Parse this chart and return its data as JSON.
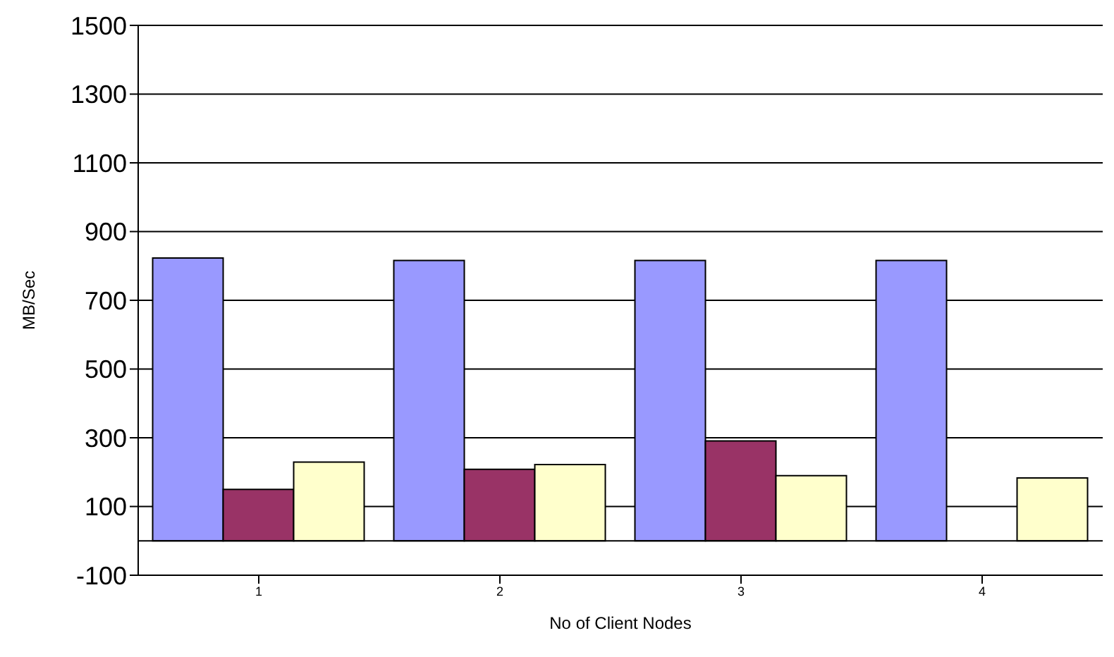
{
  "chart_data": {
    "type": "bar",
    "xlabel": "No of Client Nodes",
    "ylabel": "MB/Sec",
    "categories": [
      "1",
      "2",
      "3",
      "4"
    ],
    "series": [
      {
        "color": "#9999ff",
        "values": [
          823,
          816,
          816,
          816
        ]
      },
      {
        "color": "#993366",
        "values": [
          150,
          208,
          291,
          null
        ]
      },
      {
        "color": "#ffffcc",
        "values": [
          229,
          222,
          190,
          183
        ]
      }
    ],
    "ylim": [
      -100,
      1500
    ],
    "yticks": [
      -100,
      100,
      300,
      500,
      700,
      900,
      1100,
      1300,
      1500
    ],
    "grid": "y",
    "legend": false,
    "ref_lines": [
      {
        "axis": "y",
        "value": 0,
        "color": "#000000"
      }
    ]
  }
}
